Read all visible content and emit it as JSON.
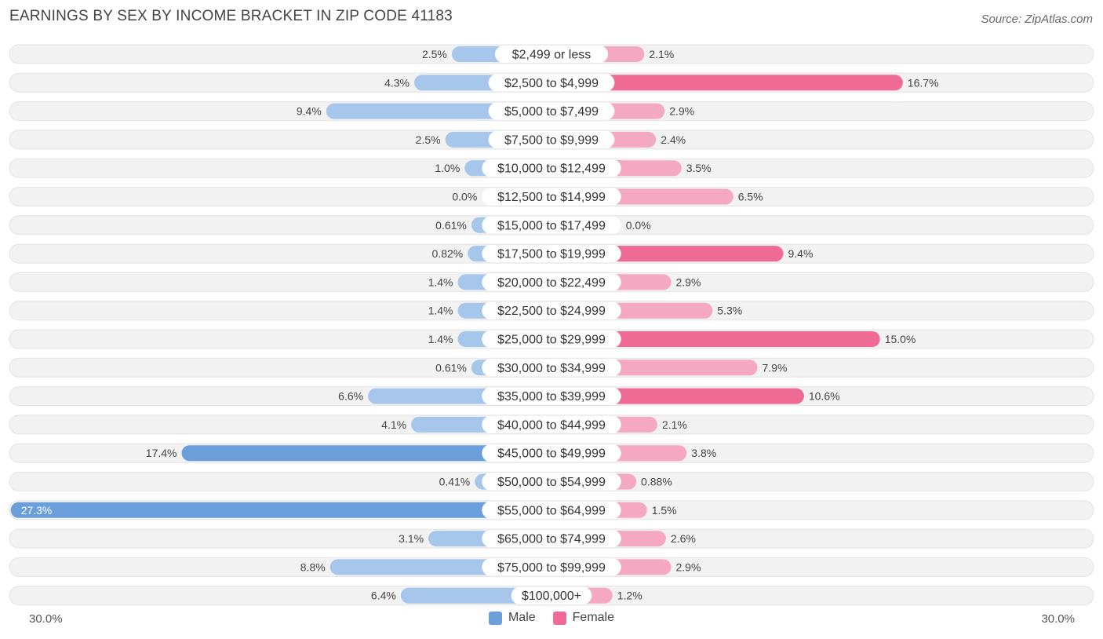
{
  "title": "EARNINGS BY SEX BY INCOME BRACKET IN ZIP CODE 41183",
  "source": "Source: ZipAtlas.com",
  "colors": {
    "male_strong": "#6a9fdb",
    "male_light": "#a7c6eb",
    "female_strong": "#f06a96",
    "female_light": "#f5a8c2",
    "row_bg": "#f2f2f2"
  },
  "chart_data": {
    "type": "bar",
    "orientation": "horizontal-diverging",
    "title": "EARNINGS BY SEX BY INCOME BRACKET IN ZIP CODE 41183",
    "categories": [
      "$2,499 or less",
      "$2,500 to $4,999",
      "$5,000 to $7,499",
      "$7,500 to $9,999",
      "$10,000 to $12,499",
      "$12,500 to $14,999",
      "$15,000 to $17,499",
      "$17,500 to $19,999",
      "$20,000 to $22,499",
      "$22,500 to $24,999",
      "$25,000 to $29,999",
      "$30,000 to $34,999",
      "$35,000 to $39,999",
      "$40,000 to $44,999",
      "$45,000 to $49,999",
      "$50,000 to $54,999",
      "$55,000 to $64,999",
      "$65,000 to $74,999",
      "$75,000 to $99,999",
      "$100,000+"
    ],
    "series": [
      {
        "name": "Male",
        "values": [
          2.5,
          4.3,
          9.4,
          2.5,
          1.0,
          0.0,
          0.61,
          0.82,
          1.4,
          1.4,
          1.4,
          0.61,
          6.6,
          4.1,
          17.4,
          0.41,
          27.3,
          3.1,
          8.8,
          6.4
        ],
        "labels": [
          "2.5%",
          "4.3%",
          "9.4%",
          "2.5%",
          "1.0%",
          "0.0%",
          "0.61%",
          "0.82%",
          "1.4%",
          "1.4%",
          "1.4%",
          "0.61%",
          "6.6%",
          "4.1%",
          "17.4%",
          "0.41%",
          "27.3%",
          "3.1%",
          "8.8%",
          "6.4%"
        ]
      },
      {
        "name": "Female",
        "values": [
          2.1,
          16.7,
          2.9,
          2.4,
          3.5,
          6.5,
          0.0,
          9.4,
          2.9,
          5.3,
          15.0,
          7.9,
          10.6,
          2.1,
          3.8,
          0.88,
          1.5,
          2.6,
          2.9,
          1.2
        ],
        "labels": [
          "2.1%",
          "16.7%",
          "2.9%",
          "2.4%",
          "3.5%",
          "6.5%",
          "0.0%",
          "9.4%",
          "2.9%",
          "5.3%",
          "15.0%",
          "7.9%",
          "10.6%",
          "2.1%",
          "3.8%",
          "0.88%",
          "1.5%",
          "2.6%",
          "2.9%",
          "1.2%"
        ]
      }
    ],
    "xlim": [
      -30,
      30
    ],
    "axis_labels": {
      "left": "30.0%",
      "right": "30.0%"
    },
    "legend": [
      "Male",
      "Female"
    ],
    "legend_position": "bottom-center"
  }
}
